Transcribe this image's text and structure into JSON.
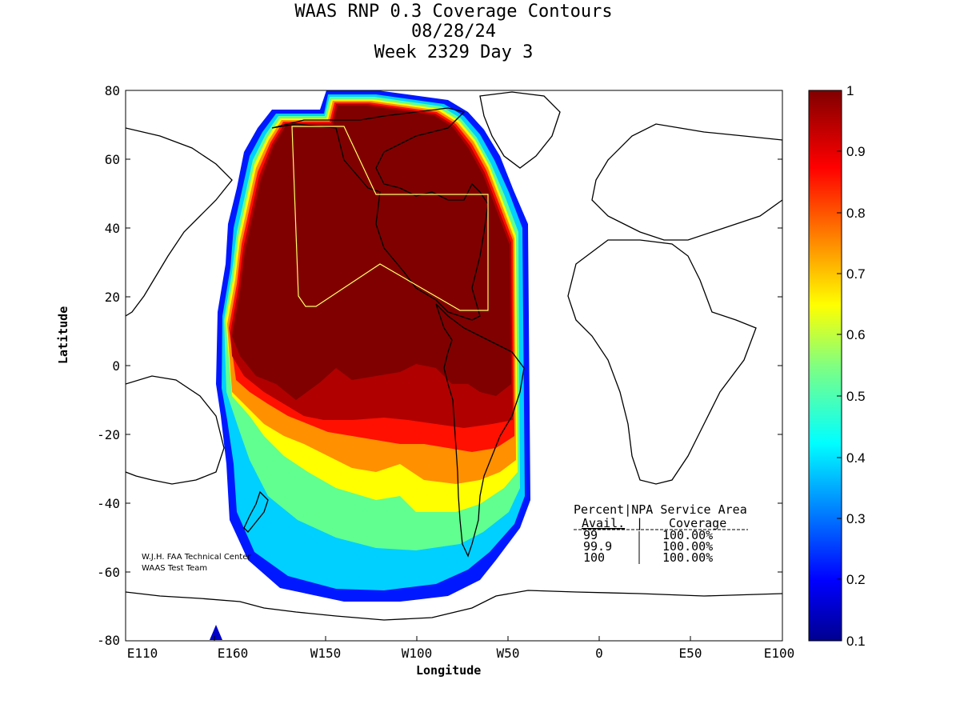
{
  "title": {
    "line1": "WAAS RNP 0.3 Coverage Contours",
    "line2": "08/28/24",
    "line3": "Week 2329 Day 3"
  },
  "axes": {
    "xlabel": "Longitude",
    "ylabel": "Latitude",
    "x_ticks": [
      "E110",
      "E160",
      "W150",
      "W100",
      "W50",
      "0",
      "E50",
      "E100"
    ],
    "y_ticks": [
      "80",
      "60",
      "40",
      "20",
      "0",
      "-20",
      "-40",
      "-60",
      "-80"
    ]
  },
  "colorbar": {
    "ticks": [
      "1",
      "0.9",
      "0.8",
      "0.7",
      "0.6",
      "0.5",
      "0.4",
      "0.3",
      "0.2",
      "0.1"
    ],
    "colormap": "jet",
    "range": [
      0.1,
      1
    ]
  },
  "credit": {
    "line1": "W.J.H. FAA Technical Center",
    "line2": "WAAS Test Team"
  },
  "coverage_table": {
    "header1": "Percent|NPA Service Area",
    "header2_left": "Avail.",
    "header2_right": "Coverage",
    "rows": [
      {
        "avail": "99",
        "coverage": "100.00%"
      },
      {
        "avail": "99.9",
        "coverage": "100.00%"
      },
      {
        "avail": "100",
        "coverage": "100.00%"
      }
    ]
  },
  "colors": {
    "dark_red": "#800000",
    "service_area_outline": "#ffff66"
  }
}
